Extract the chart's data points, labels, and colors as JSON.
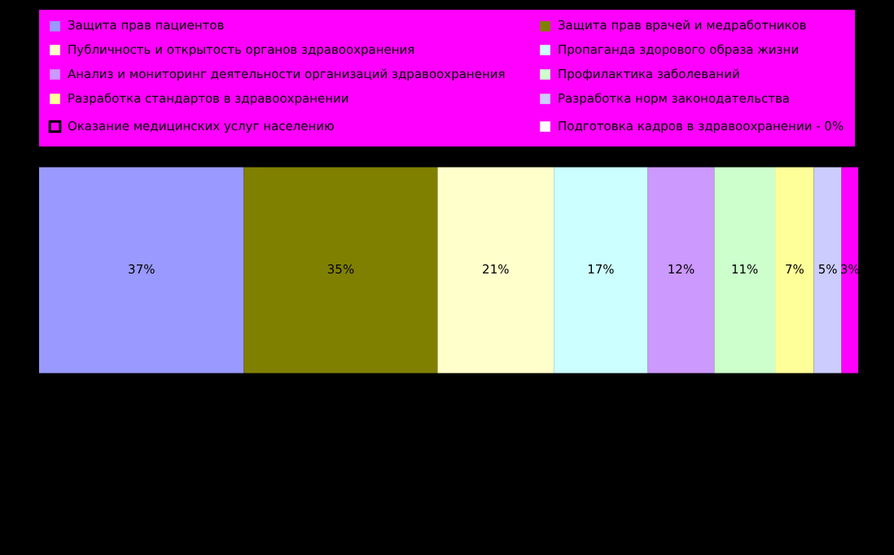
{
  "chart_data": {
    "type": "bar",
    "orientation": "horizontal",
    "stacked": true,
    "categories": [
      null
    ],
    "legend": "top",
    "series": [
      {
        "name": "Защита прав пациентов",
        "color": "#9999ff",
        "values": [
          37
        ],
        "value_labels": [
          "37%"
        ]
      },
      {
        "name": "Защита прав врачей и медработников",
        "color": "#808000",
        "values": [
          35
        ],
        "value_labels": [
          "35%"
        ]
      },
      {
        "name": "Публичность и открытость органов здравоохранения",
        "color": "#ffffcc",
        "values": [
          21
        ],
        "value_labels": [
          "21%"
        ]
      },
      {
        "name": "Пропаганда здорового образа жизни",
        "color": "#ccffff",
        "values": [
          17
        ],
        "value_labels": [
          "17%"
        ]
      },
      {
        "name": "Анализ и мониторинг деятельности организаций здравоохранения",
        "color": "#cc99ff",
        "values": [
          12
        ],
        "value_labels": [
          "12%"
        ]
      },
      {
        "name": "Профилактика заболеваний",
        "color": "#ccffcc",
        "values": [
          11
        ],
        "value_labels": [
          "11%"
        ]
      },
      {
        "name": "Разработка стандартов в здравоохранении",
        "color": "#ffff99",
        "values": [
          7
        ],
        "value_labels": [
          "7%"
        ]
      },
      {
        "name": "Разработка норм законодательства",
        "color": "#ccccff",
        "values": [
          5
        ],
        "value_labels": [
          "5%"
        ]
      },
      {
        "name": "Оказание медицинских услуг населению",
        "color": "#ff00ff",
        "values": [
          3
        ],
        "value_labels": [
          "3%"
        ]
      },
      {
        "name": "Подготовка кадров в здравоохранении - 0%",
        "color": "#ffffff",
        "values": [
          0
        ]
      }
    ]
  }
}
